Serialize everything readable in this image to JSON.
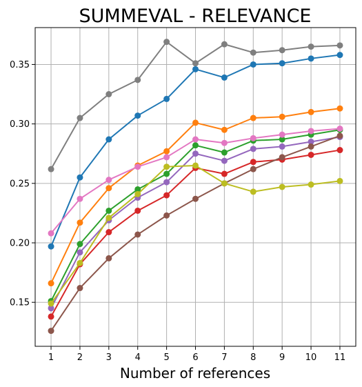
{
  "chart_data": {
    "type": "line",
    "title": "SUMMEVAL - RELEVANCE",
    "xlabel": "Number of references",
    "ylabel": "",
    "x": [
      1,
      2,
      3,
      4,
      5,
      6,
      7,
      8,
      9,
      10,
      11
    ],
    "xlim": [
      0.45,
      11.55
    ],
    "ylim": [
      0.113,
      0.381
    ],
    "yticks": [
      0.15,
      0.2,
      0.25,
      0.3,
      0.35
    ],
    "ytick_labels": [
      "0.15",
      "0.20",
      "0.25",
      "0.30",
      "0.35"
    ],
    "xtick_labels": [
      "1",
      "2",
      "3",
      "4",
      "5",
      "6",
      "7",
      "8",
      "9",
      "10",
      "11"
    ],
    "grid": true,
    "series": [
      {
        "color": "#1f77b4",
        "values": [
          0.197,
          0.255,
          0.287,
          0.307,
          0.321,
          0.346,
          0.339,
          0.35,
          0.351,
          0.355,
          0.358
        ]
      },
      {
        "color": "#ff7f0e",
        "values": [
          0.166,
          0.217,
          0.246,
          0.265,
          0.277,
          0.301,
          0.295,
          0.305,
          0.306,
          0.31,
          0.313
        ]
      },
      {
        "color": "#2ca02c",
        "values": [
          0.151,
          0.199,
          0.227,
          0.245,
          0.258,
          0.282,
          0.276,
          0.286,
          0.287,
          0.291,
          0.295
        ]
      },
      {
        "color": "#d62728",
        "values": [
          0.138,
          0.182,
          0.209,
          0.227,
          0.24,
          0.263,
          0.258,
          0.268,
          0.27,
          0.274,
          0.278
        ]
      },
      {
        "color": "#9467bd",
        "values": [
          0.145,
          0.192,
          0.219,
          0.238,
          0.251,
          0.275,
          0.269,
          0.279,
          0.281,
          0.285,
          0.289
        ]
      },
      {
        "color": "#8c564b",
        "values": [
          0.126,
          0.162,
          0.187,
          0.207,
          0.223,
          0.237,
          0.25,
          0.262,
          0.272,
          0.281,
          0.29
        ]
      },
      {
        "color": "#e377c2",
        "values": [
          0.208,
          0.237,
          0.253,
          0.264,
          0.272,
          0.287,
          0.284,
          0.288,
          0.291,
          0.294,
          0.296
        ]
      },
      {
        "color": "#7f7f7f",
        "values": [
          0.262,
          0.305,
          0.325,
          0.337,
          0.369,
          0.351,
          0.367,
          0.36,
          0.362,
          0.365,
          0.366
        ]
      },
      {
        "color": "#bcbd22",
        "values": [
          0.149,
          0.183,
          0.221,
          0.241,
          0.264,
          0.265,
          0.25,
          0.243,
          0.247,
          0.249,
          0.252
        ]
      }
    ]
  }
}
